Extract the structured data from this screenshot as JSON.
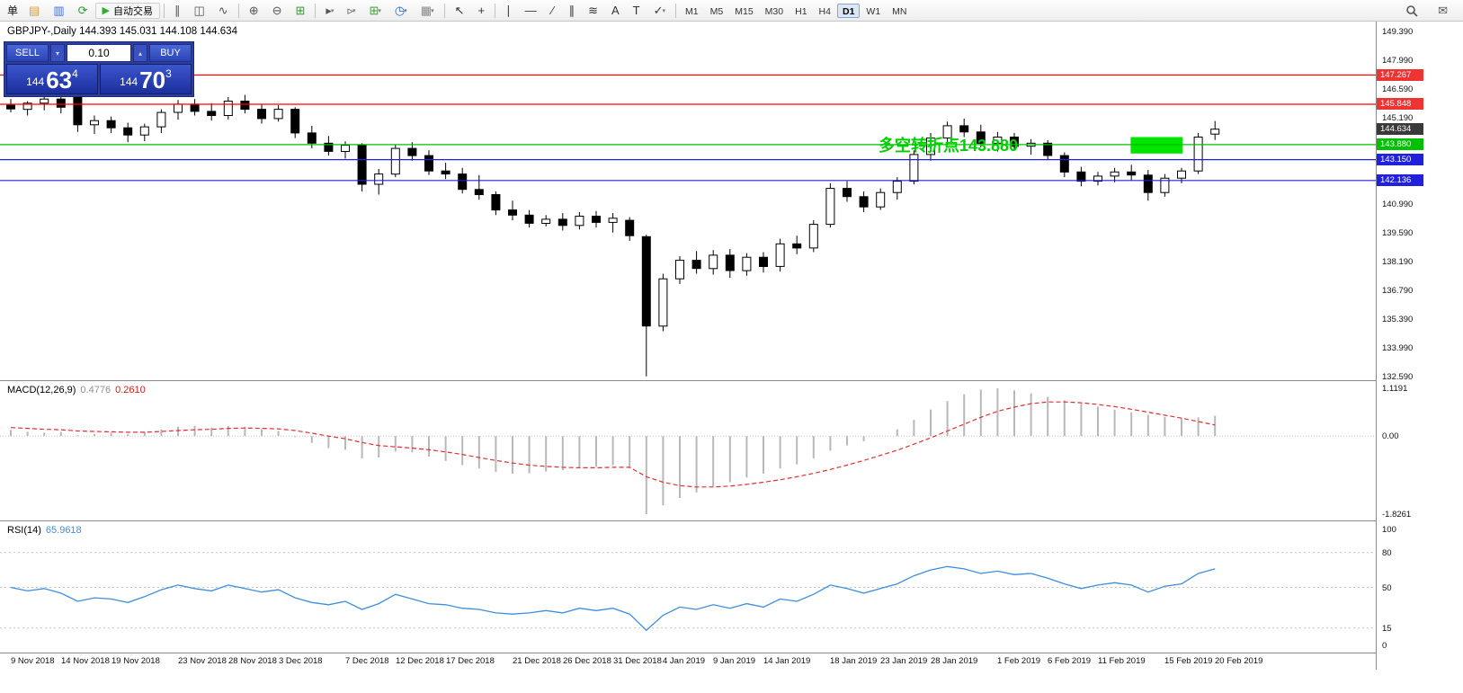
{
  "toolbar": {
    "dropdown_glyph": "▾",
    "items": [
      {
        "type": "label",
        "name": "order-label",
        "text": "单"
      },
      {
        "type": "icon",
        "name": "new-order-icon",
        "glyph": "▤",
        "color": "#d89a3a"
      },
      {
        "type": "icon",
        "name": "market-watch-icon",
        "glyph": "▥",
        "color": "#4a6fd4"
      },
      {
        "type": "icon",
        "name": "refresh-icon",
        "glyph": "⟳",
        "color": "#2f9e2f"
      },
      {
        "type": "button",
        "name": "auto-trading-button",
        "glyph": "▶",
        "glyph_color": "#2fae2f",
        "text": "自动交易"
      },
      {
        "type": "sep"
      },
      {
        "type": "icon",
        "name": "bar-chart-icon",
        "glyph": "∥",
        "color": "#555555"
      },
      {
        "type": "icon",
        "name": "candlestick-chart-icon",
        "glyph": "◫",
        "color": "#555555"
      },
      {
        "type": "icon",
        "name": "line-chart-icon",
        "glyph": "∿",
        "color": "#555555"
      },
      {
        "type": "sep"
      },
      {
        "type": "icon",
        "name": "zoom-in-icon",
        "glyph": "⊕",
        "color": "#555555"
      },
      {
        "type": "icon",
        "name": "zoom-out-icon",
        "glyph": "⊖",
        "color": "#555555"
      },
      {
        "type": "icon",
        "name": "tile-windows-icon",
        "glyph": "⊞",
        "color": "#2f9e2f"
      },
      {
        "type": "sep"
      },
      {
        "type": "icon",
        "name": "auto-scroll-icon",
        "glyph": "▸",
        "color": "#555555",
        "dd": true
      },
      {
        "type": "icon",
        "name": "chart-shift-icon",
        "glyph": "▹",
        "color": "#555555",
        "dd": true
      },
      {
        "type": "icon",
        "name": "new-chart-icon",
        "glyph": "⊞",
        "color": "#3aa63a",
        "dd": true
      },
      {
        "type": "icon",
        "name": "period-icon",
        "glyph": "◷",
        "color": "#2a62c8",
        "dd": true
      },
      {
        "type": "icon",
        "name": "template-icon",
        "glyph": "▦",
        "color": "#888888",
        "dd": true
      },
      {
        "type": "sep"
      },
      {
        "type": "icon",
        "name": "cursor-icon",
        "glyph": "↖",
        "color": "#333333"
      },
      {
        "type": "icon",
        "name": "crosshair-icon",
        "glyph": "+",
        "color": "#333333"
      },
      {
        "type": "sep"
      },
      {
        "type": "icon",
        "name": "vertical-line-icon",
        "glyph": "∣",
        "color": "#333333"
      },
      {
        "type": "icon",
        "name": "horizontal-line-icon",
        "glyph": "—",
        "color": "#333333"
      },
      {
        "type": "icon",
        "name": "trendline-icon",
        "glyph": "∕",
        "color": "#333333"
      },
      {
        "type": "icon",
        "name": "equidistant-channel-icon",
        "glyph": "∥",
        "color": "#333333"
      },
      {
        "type": "icon",
        "name": "fibonacci-icon",
        "glyph": "≋",
        "color": "#333333"
      },
      {
        "type": "icon",
        "name": "text-icon",
        "glyph": "A",
        "color": "#333333"
      },
      {
        "type": "icon",
        "name": "text-label-icon",
        "glyph": "T",
        "color": "#333333"
      },
      {
        "type": "icon",
        "name": "arrows-icon",
        "glyph": "✓",
        "color": "#333333",
        "dd": true
      },
      {
        "type": "sep"
      }
    ],
    "timeframes": [
      {
        "label": "M1",
        "active": false
      },
      {
        "label": "M5",
        "active": false
      },
      {
        "label": "M15",
        "active": false
      },
      {
        "label": "M30",
        "active": false
      },
      {
        "label": "H1",
        "active": false
      },
      {
        "label": "H4",
        "active": false
      },
      {
        "label": "D1",
        "active": true
      },
      {
        "label": "W1",
        "active": false
      },
      {
        "label": "MN",
        "active": false
      }
    ],
    "right_items": [
      {
        "type": "icon",
        "name": "search-icon",
        "glyph": "MAG",
        "color": "#555555"
      },
      {
        "type": "icon",
        "name": "community-icon",
        "glyph": "✉",
        "color": "#555555"
      }
    ]
  },
  "one_click": {
    "sell_label": "SELL",
    "buy_label": "BUY",
    "lot_value": "0.10",
    "sell_dropdown_glyph": "▾",
    "lot_spin_glyph": "▴",
    "bid": {
      "prefix": "144",
      "big": "63",
      "sup": "4"
    },
    "ask": {
      "prefix": "144",
      "big": "70",
      "sup": "3"
    }
  },
  "chart": {
    "title": "GBPJPY-,Daily 144.393 145.031 144.108 144.634",
    "annotation": {
      "text": "多空转折点143.880",
      "color": "#00d000"
    },
    "rectangle": {
      "from_index": 67.2,
      "to_index": 70.3,
      "top_price": 144.25,
      "bottom_price": 143.45,
      "color": "#00e400"
    },
    "price_axis": {
      "labels": [
        "149.390",
        "147.990",
        "146.590",
        "145.190",
        "140.990",
        "139.590",
        "138.190",
        "136.790",
        "135.390",
        "133.990",
        "132.590"
      ],
      "tags": [
        {
          "label": "147.267",
          "price": 147.267,
          "bg": "#ee3333",
          "line_color": "#ff0000"
        },
        {
          "label": "145.848",
          "price": 145.848,
          "bg": "#ee3333",
          "line_color": "#ff0000"
        },
        {
          "label": "144.634",
          "price": 144.634,
          "bg": "#3a3a3a",
          "line_color": null
        },
        {
          "label": "143.880",
          "price": 143.88,
          "bg": "#00c000",
          "line_color": "#00c000"
        },
        {
          "label": "143.150",
          "price": 143.15,
          "bg": "#2020dd",
          "line_color": "#2020dd"
        },
        {
          "label": "142.136",
          "price": 142.136,
          "bg": "#2020dd",
          "line_color": "#2020dd"
        }
      ]
    }
  },
  "macd_pane": {
    "title": "MACD(12,26,9)",
    "value": "0.4776",
    "signal_value": "0.2610",
    "scale": [
      "1.1191",
      "0.00",
      "-1.8261"
    ]
  },
  "rsi_pane": {
    "title": "RSI(14)",
    "value": "65.9618",
    "scale": [
      "100",
      "80",
      "50",
      "15",
      "0"
    ]
  },
  "date_axis": {
    "labels": [
      {
        "text": "9 Nov 2018",
        "index": 0
      },
      {
        "text": "14 Nov 2018",
        "index": 3
      },
      {
        "text": "19 Nov 2018",
        "index": 6
      },
      {
        "text": "23 Nov 2018",
        "index": 10
      },
      {
        "text": "28 Nov 2018",
        "index": 13
      },
      {
        "text": "3 Dec 2018",
        "index": 16
      },
      {
        "text": "7 Dec 2018",
        "index": 20
      },
      {
        "text": "12 Dec 2018",
        "index": 23
      },
      {
        "text": "17 Dec 2018",
        "index": 26
      },
      {
        "text": "21 Dec 2018",
        "index": 30
      },
      {
        "text": "26 Dec 2018",
        "index": 33
      },
      {
        "text": "31 Dec 2018",
        "index": 36
      },
      {
        "text": "4 Jan 2019",
        "index": 39
      },
      {
        "text": "9 Jan 2019",
        "index": 42
      },
      {
        "text": "14 Jan 2019",
        "index": 45
      },
      {
        "text": "18 Jan 2019",
        "index": 49
      },
      {
        "text": "23 Jan 2019",
        "index": 52
      },
      {
        "text": "28 Jan 2019",
        "index": 55
      },
      {
        "text": "1 Feb 2019",
        "index": 59
      },
      {
        "text": "6 Feb 2019",
        "index": 62
      },
      {
        "text": "11 Feb 2019",
        "index": 65
      },
      {
        "text": "15 Feb 2019",
        "index": 69
      },
      {
        "text": "20 Feb 2019",
        "index": 72
      }
    ]
  },
  "chart_data": {
    "type": "candlestick",
    "symbol": "GBPJPY-",
    "period": "Daily",
    "current_ohlc": {
      "open": 144.393,
      "high": 145.031,
      "low": 144.108,
      "close": 144.634
    },
    "price_range": [
      132.415,
      149.871
    ],
    "style": {
      "bull": "#ffffff",
      "bear": "#000000",
      "outline": "#000000"
    },
    "levels": [
      147.267,
      145.848,
      143.88,
      143.15,
      142.136
    ],
    "last_price": 144.634,
    "dates": [
      "9 Nov 2018",
      "12 Nov 2018",
      "13 Nov 2018",
      "14 Nov 2018",
      "15 Nov 2018",
      "16 Nov 2018",
      "19 Nov 2018",
      "20 Nov 2018",
      "21 Nov 2018",
      "22 Nov 2018",
      "23 Nov 2018",
      "26 Nov 2018",
      "27 Nov 2018",
      "28 Nov 2018",
      "29 Nov 2018",
      "30 Nov 2018",
      "3 Dec 2018",
      "4 Dec 2018",
      "5 Dec 2018",
      "6 Dec 2018",
      "7 Dec 2018",
      "10 Dec 2018",
      "11 Dec 2018",
      "12 Dec 2018",
      "13 Dec 2018",
      "14 Dec 2018",
      "17 Dec 2018",
      "18 Dec 2018",
      "19 Dec 2018",
      "20 Dec 2018",
      "21 Dec 2018",
      "24 Dec 2018",
      "25 Dec 2018",
      "26 Dec 2018",
      "27 Dec 2018",
      "28 Dec 2018",
      "31 Dec 2018",
      "2 Jan 2019",
      "3 Jan 2019",
      "4 Jan 2019",
      "7 Jan 2019",
      "8 Jan 2019",
      "9 Jan 2019",
      "10 Jan 2019",
      "11 Jan 2019",
      "14 Jan 2019",
      "15 Jan 2019",
      "16 Jan 2019",
      "17 Jan 2019",
      "18 Jan 2019",
      "21 Jan 2019",
      "22 Jan 2019",
      "23 Jan 2019",
      "24 Jan 2019",
      "25 Jan 2019",
      "28 Jan 2019",
      "29 Jan 2019",
      "30 Jan 2019",
      "31 Jan 2019",
      "1 Feb 2019",
      "4 Feb 2019",
      "5 Feb 2019",
      "6 Feb 2019",
      "7 Feb 2019",
      "8 Feb 2019",
      "11 Feb 2019",
      "12 Feb 2019",
      "13 Feb 2019",
      "14 Feb 2019",
      "15 Feb 2019",
      "18 Feb 2019",
      "19 Feb 2019",
      "20 Feb 2019"
    ],
    "ohlc": [
      [
        145.8,
        146.1,
        145.45,
        145.62
      ],
      [
        145.6,
        146.0,
        145.3,
        145.9
      ],
      [
        145.9,
        146.35,
        145.55,
        146.1
      ],
      [
        146.1,
        146.45,
        145.4,
        145.7
      ],
      [
        146.2,
        146.35,
        144.5,
        144.85
      ],
      [
        144.85,
        145.3,
        144.4,
        145.05
      ],
      [
        145.05,
        145.25,
        144.45,
        144.7
      ],
      [
        144.7,
        144.95,
        144.0,
        144.35
      ],
      [
        144.35,
        144.9,
        144.05,
        144.75
      ],
      [
        144.75,
        145.6,
        144.45,
        145.45
      ],
      [
        145.45,
        146.05,
        145.1,
        145.85
      ],
      [
        145.85,
        146.1,
        145.3,
        145.5
      ],
      [
        145.5,
        145.9,
        145.05,
        145.3
      ],
      [
        145.3,
        146.2,
        145.1,
        146.0
      ],
      [
        146.0,
        146.3,
        145.4,
        145.6
      ],
      [
        145.6,
        145.85,
        144.9,
        145.15
      ],
      [
        145.15,
        145.8,
        145.0,
        145.6
      ],
      [
        145.6,
        145.7,
        144.2,
        144.45
      ],
      [
        144.45,
        144.8,
        143.7,
        143.95
      ],
      [
        143.95,
        144.3,
        143.35,
        143.55
      ],
      [
        143.55,
        144.05,
        143.2,
        143.85
      ],
      [
        143.85,
        143.95,
        141.6,
        141.95
      ],
      [
        141.95,
        142.7,
        141.45,
        142.45
      ],
      [
        142.45,
        143.9,
        142.3,
        143.7
      ],
      [
        143.7,
        144.0,
        143.1,
        143.35
      ],
      [
        143.35,
        143.6,
        142.4,
        142.6
      ],
      [
        142.6,
        143.0,
        142.2,
        142.45
      ],
      [
        142.45,
        142.75,
        141.5,
        141.7
      ],
      [
        141.7,
        142.4,
        141.2,
        141.45
      ],
      [
        141.45,
        141.6,
        140.45,
        140.7
      ],
      [
        140.7,
        141.15,
        140.2,
        140.45
      ],
      [
        140.45,
        140.7,
        139.85,
        140.05
      ],
      [
        140.05,
        140.45,
        139.9,
        140.25
      ],
      [
        140.25,
        140.55,
        139.7,
        139.95
      ],
      [
        139.95,
        140.6,
        139.75,
        140.4
      ],
      [
        140.4,
        140.65,
        139.85,
        140.1
      ],
      [
        140.1,
        140.55,
        139.6,
        140.3
      ],
      [
        140.2,
        140.35,
        139.2,
        139.45
      ],
      [
        139.4,
        139.5,
        132.6,
        135.05
      ],
      [
        135.05,
        137.6,
        134.8,
        137.35
      ],
      [
        137.35,
        138.45,
        137.1,
        138.25
      ],
      [
        138.25,
        138.7,
        137.6,
        137.85
      ],
      [
        137.85,
        138.75,
        137.55,
        138.5
      ],
      [
        138.5,
        138.8,
        137.4,
        137.75
      ],
      [
        137.75,
        138.6,
        137.5,
        138.4
      ],
      [
        138.4,
        138.65,
        137.65,
        137.95
      ],
      [
        137.95,
        139.3,
        137.7,
        139.05
      ],
      [
        139.05,
        139.45,
        138.55,
        138.85
      ],
      [
        138.85,
        140.2,
        138.65,
        140.0
      ],
      [
        140.0,
        142.0,
        139.85,
        141.75
      ],
      [
        141.75,
        142.1,
        141.1,
        141.35
      ],
      [
        141.35,
        141.6,
        140.6,
        140.85
      ],
      [
        140.85,
        141.75,
        140.7,
        141.55
      ],
      [
        141.55,
        142.3,
        141.2,
        142.1
      ],
      [
        142.1,
        143.6,
        141.95,
        143.4
      ],
      [
        143.4,
        144.45,
        143.1,
        144.2
      ],
      [
        144.2,
        145.0,
        143.85,
        144.8
      ],
      [
        144.8,
        145.15,
        144.25,
        144.5
      ],
      [
        144.5,
        144.85,
        143.75,
        143.95
      ],
      [
        143.95,
        144.5,
        143.55,
        144.25
      ],
      [
        144.25,
        144.45,
        143.6,
        143.8
      ],
      [
        143.8,
        144.15,
        143.4,
        143.95
      ],
      [
        143.95,
        144.1,
        143.15,
        143.35
      ],
      [
        143.35,
        143.5,
        142.3,
        142.55
      ],
      [
        142.55,
        142.8,
        141.85,
        142.1
      ],
      [
        142.1,
        142.55,
        141.9,
        142.35
      ],
      [
        142.35,
        142.75,
        142.05,
        142.55
      ],
      [
        142.55,
        142.9,
        142.15,
        142.4
      ],
      [
        142.4,
        142.65,
        141.15,
        141.55
      ],
      [
        141.55,
        142.45,
        141.35,
        142.25
      ],
      [
        142.25,
        142.75,
        142.0,
        142.6
      ],
      [
        142.6,
        144.45,
        142.45,
        144.25
      ],
      [
        144.393,
        145.031,
        144.108,
        144.634
      ]
    ],
    "indicators": {
      "macd": {
        "range": [
          -1.8261,
          1.1191
        ],
        "histogram_color": "#b8b8b8",
        "signal_color": "#e03030",
        "histogram": [
          0.14,
          0.1,
          0.08,
          0.1,
          0.02,
          0.05,
          0.08,
          0.05,
          0.1,
          0.16,
          0.22,
          0.24,
          0.2,
          0.24,
          0.22,
          0.16,
          0.12,
          -0.02,
          -0.16,
          -0.28,
          -0.32,
          -0.52,
          -0.5,
          -0.36,
          -0.38,
          -0.48,
          -0.58,
          -0.68,
          -0.76,
          -0.84,
          -0.88,
          -0.87,
          -0.83,
          -0.8,
          -0.75,
          -0.72,
          -0.68,
          -0.74,
          -1.8261,
          -1.62,
          -1.45,
          -1.32,
          -1.18,
          -1.08,
          -0.97,
          -0.88,
          -0.76,
          -0.66,
          -0.52,
          -0.34,
          -0.22,
          -0.12,
          0.0,
          0.16,
          0.38,
          0.62,
          0.82,
          0.98,
          1.09,
          1.1191,
          1.07,
          1.0,
          0.92,
          0.84,
          0.76,
          0.69,
          0.62,
          0.56,
          0.5,
          0.45,
          0.42,
          0.44,
          0.4776
        ],
        "signal": [
          0.2,
          0.18,
          0.16,
          0.15,
          0.12,
          0.11,
          0.1,
          0.09,
          0.09,
          0.11,
          0.13,
          0.15,
          0.16,
          0.18,
          0.19,
          0.18,
          0.17,
          0.13,
          0.07,
          0.0,
          -0.06,
          -0.15,
          -0.22,
          -0.25,
          -0.28,
          -0.32,
          -0.37,
          -0.43,
          -0.5,
          -0.57,
          -0.63,
          -0.68,
          -0.71,
          -0.73,
          -0.74,
          -0.74,
          -0.73,
          -0.73,
          -0.95,
          -1.08,
          -1.16,
          -1.19,
          -1.19,
          -1.17,
          -1.13,
          -1.08,
          -1.02,
          -0.95,
          -0.87,
          -0.78,
          -0.68,
          -0.57,
          -0.45,
          -0.33,
          -0.19,
          -0.04,
          0.12,
          0.28,
          0.44,
          0.58,
          0.68,
          0.76,
          0.8,
          0.8,
          0.78,
          0.74,
          0.69,
          0.63,
          0.56,
          0.49,
          0.42,
          0.34,
          0.261
        ]
      },
      "rsi": {
        "range": [
          0,
          100
        ],
        "levels": [
          80,
          50,
          15
        ],
        "line_color": "#3e8edd",
        "values": [
          50,
          47,
          49,
          45,
          38,
          41,
          40,
          37,
          42,
          48,
          52,
          49,
          47,
          52,
          49,
          46,
          48,
          41,
          37,
          35,
          38,
          31,
          36,
          44,
          40,
          36,
          35,
          32,
          31,
          28,
          27,
          28,
          30,
          28,
          32,
          30,
          32,
          27,
          13,
          26,
          33,
          31,
          35,
          32,
          36,
          33,
          40,
          38,
          44,
          52,
          49,
          45,
          49,
          53,
          60,
          65,
          68,
          66,
          62,
          64,
          61,
          62,
          58,
          53,
          49,
          52,
          54,
          52,
          46,
          51,
          53,
          62,
          66
        ]
      }
    }
  }
}
